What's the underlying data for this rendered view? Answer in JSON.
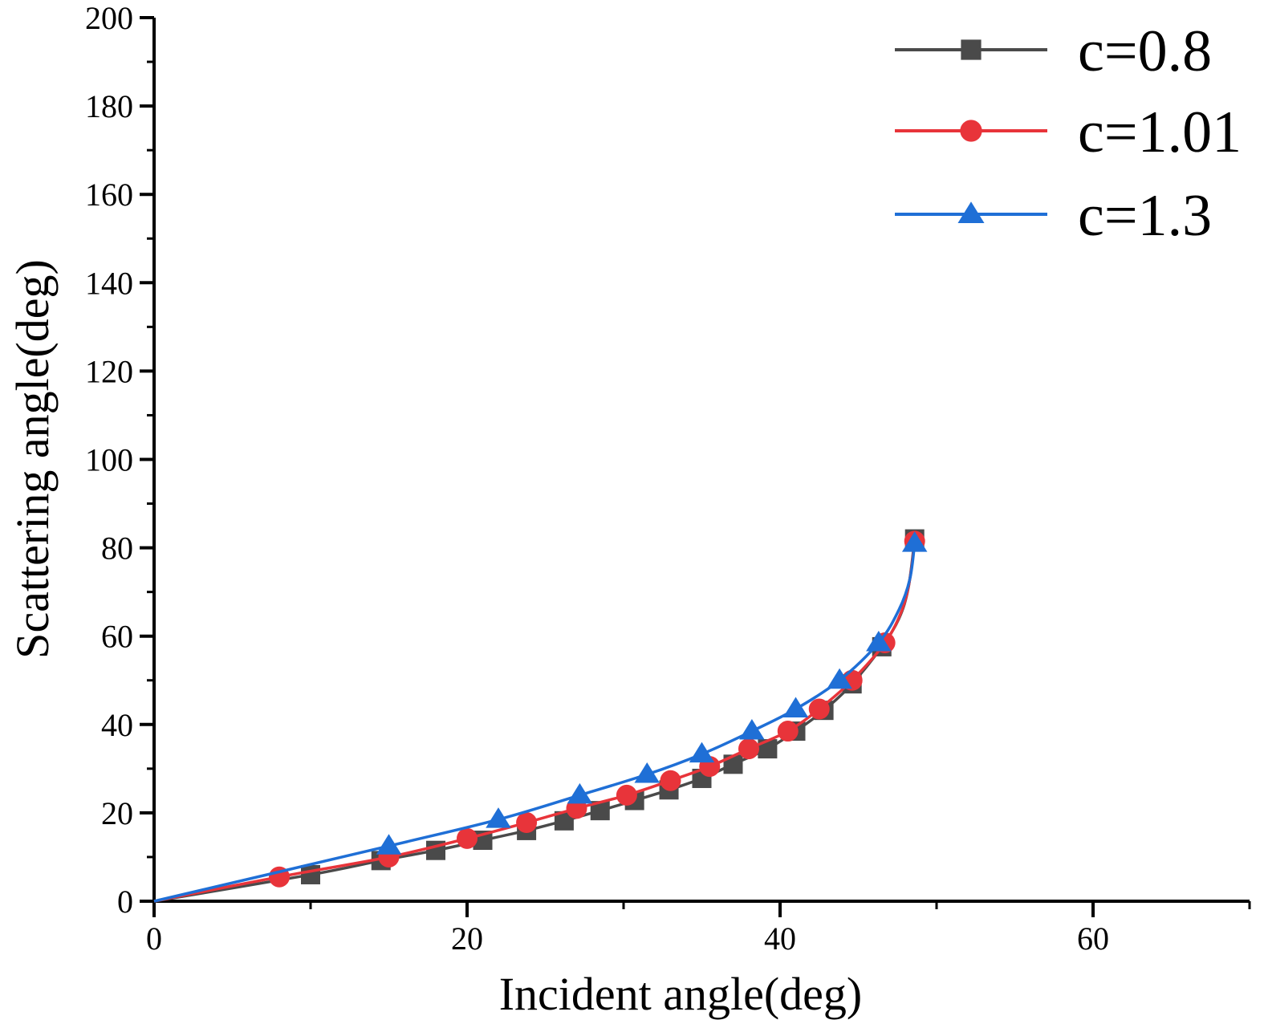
{
  "chart_data": {
    "type": "line",
    "xlabel": "Incident angle(deg)",
    "ylabel": "Scattering angle(deg)",
    "xlim": [
      0,
      70
    ],
    "ylim": [
      0,
      200
    ],
    "xticks": [
      0,
      20,
      40,
      60
    ],
    "yticks": [
      0,
      20,
      40,
      60,
      80,
      100,
      120,
      140,
      160,
      180,
      200
    ],
    "x_minor_step": 10,
    "y_minor_step": 10,
    "grid": false,
    "legend_position": "top-right",
    "series": [
      {
        "name": "c=0.8",
        "color": "#4a4a4a",
        "marker": "square",
        "markers": [
          [
            0,
            0
          ],
          [
            10,
            6
          ],
          [
            14.5,
            9.2
          ],
          [
            18,
            11.5
          ],
          [
            21,
            13.8
          ],
          [
            23.8,
            16
          ],
          [
            26.2,
            18.2
          ],
          [
            28.5,
            20.5
          ],
          [
            30.7,
            22.8
          ],
          [
            32.9,
            25.2
          ],
          [
            35,
            27.8
          ],
          [
            37,
            31
          ],
          [
            39.2,
            34.5
          ],
          [
            41,
            38.5
          ],
          [
            42.8,
            43.2
          ],
          [
            44.6,
            49.2
          ],
          [
            46.5,
            57.6
          ],
          [
            48.6,
            82
          ]
        ],
        "curve": [
          [
            0,
            0
          ],
          [
            10,
            6
          ],
          [
            14.5,
            9.2
          ],
          [
            18,
            11.5
          ],
          [
            21,
            13.8
          ],
          [
            23.8,
            16
          ],
          [
            26.2,
            18.2
          ],
          [
            28.5,
            20.5
          ],
          [
            30.7,
            22.8
          ],
          [
            32.9,
            25.2
          ],
          [
            35,
            27.8
          ],
          [
            37,
            31
          ],
          [
            39.2,
            34.5
          ],
          [
            41,
            38.5
          ],
          [
            42.8,
            43.2
          ],
          [
            44.6,
            49.2
          ],
          [
            46.5,
            57.6
          ],
          [
            47.6,
            64
          ],
          [
            48.2,
            71
          ],
          [
            48.6,
            82
          ]
        ]
      },
      {
        "name": "c=1.01",
        "color": "#e8343a",
        "marker": "circle",
        "markers": [
          [
            8,
            5.5
          ],
          [
            15,
            10
          ],
          [
            20,
            14.2
          ],
          [
            23.8,
            17.8
          ],
          [
            27,
            21
          ],
          [
            30.2,
            24
          ],
          [
            33,
            27.3
          ],
          [
            35.5,
            30.5
          ],
          [
            38,
            34.5
          ],
          [
            40.5,
            38.5
          ],
          [
            42.5,
            43.5
          ],
          [
            44.6,
            50
          ],
          [
            46.7,
            58.5
          ],
          [
            48.6,
            81.5
          ]
        ],
        "curve": [
          [
            0,
            0
          ],
          [
            8,
            5.5
          ],
          [
            15,
            10
          ],
          [
            20,
            14.2
          ],
          [
            23.8,
            17.8
          ],
          [
            27,
            21
          ],
          [
            30.2,
            24
          ],
          [
            33,
            27.3
          ],
          [
            35.5,
            30.5
          ],
          [
            38,
            34.5
          ],
          [
            40.5,
            38.5
          ],
          [
            42.5,
            43.5
          ],
          [
            44.6,
            50
          ],
          [
            46.7,
            58.5
          ],
          [
            47.8,
            66
          ],
          [
            48.3,
            73
          ],
          [
            48.6,
            81.5
          ]
        ]
      },
      {
        "name": "c=1.3",
        "color": "#1f6fd6",
        "marker": "triangle",
        "markers": [
          [
            15,
            12.5
          ],
          [
            22,
            18.5
          ],
          [
            27.2,
            24
          ],
          [
            31.5,
            28.7
          ],
          [
            35,
            33.3
          ],
          [
            38.2,
            38.5
          ],
          [
            41,
            43.5
          ],
          [
            43.8,
            50
          ],
          [
            46.3,
            58.5
          ],
          [
            48.6,
            81
          ]
        ],
        "curve": [
          [
            0,
            0
          ],
          [
            15,
            12.5
          ],
          [
            22,
            18.5
          ],
          [
            27.2,
            24
          ],
          [
            31.5,
            28.7
          ],
          [
            35,
            33.3
          ],
          [
            38.2,
            38.5
          ],
          [
            41,
            43.5
          ],
          [
            43.8,
            50
          ],
          [
            46.3,
            58.5
          ],
          [
            47.6,
            66
          ],
          [
            48.3,
            73
          ],
          [
            48.6,
            81
          ]
        ]
      }
    ]
  }
}
